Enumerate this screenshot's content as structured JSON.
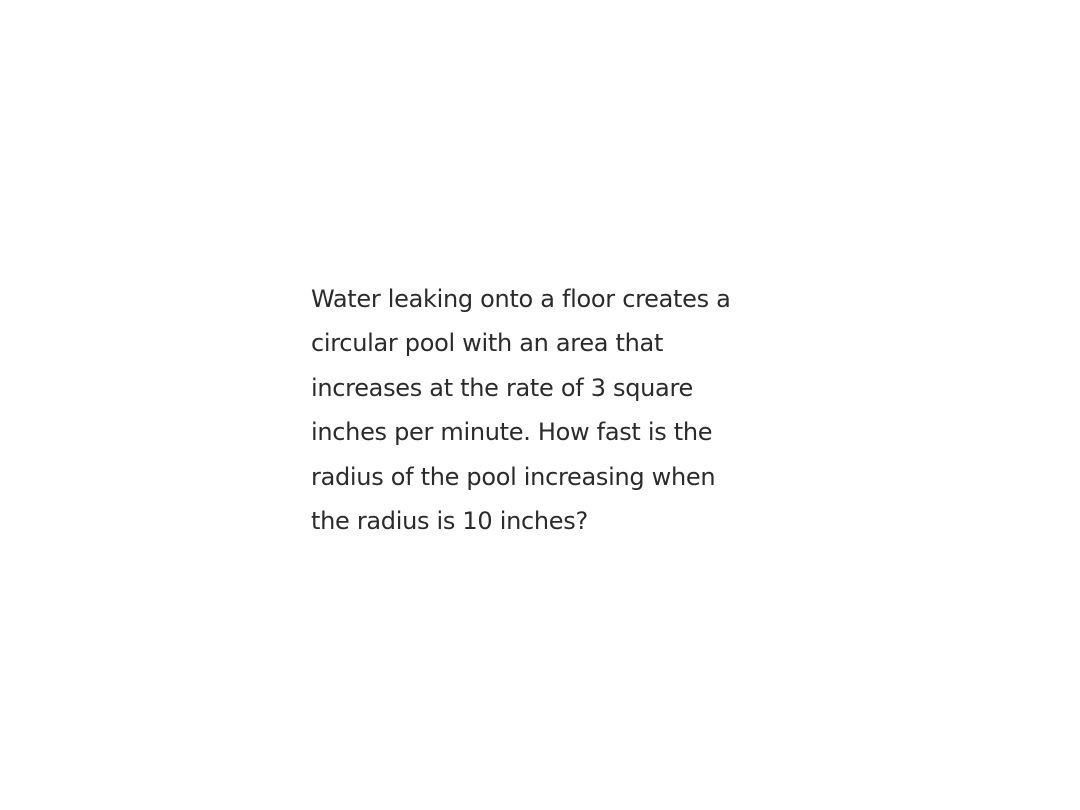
{
  "problem": {
    "lines": [
      "Water leaking onto a floor creates a",
      "circular pool with an area that",
      "increases at the rate of 3 square",
      "inches per minute. How fast is the",
      "radius of the pool increasing when",
      "the radius is 10 inches?"
    ]
  }
}
